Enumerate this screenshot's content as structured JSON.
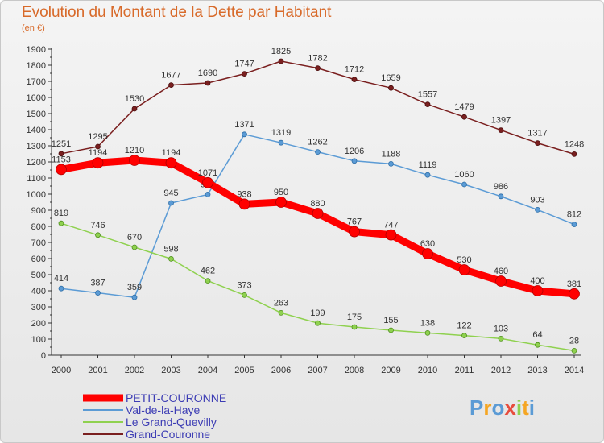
{
  "chart_data": {
    "type": "line",
    "title": "Evolution du Montant de la Dette par Habitant",
    "subtitle": "(en €)",
    "xlabel": "",
    "ylabel": "",
    "x": [
      "2000",
      "2001",
      "2002",
      "2003",
      "2004",
      "2005",
      "2006",
      "2007",
      "2008",
      "2009",
      "2010",
      "2011",
      "2012",
      "2013",
      "2014"
    ],
    "ylim": [
      0,
      1900
    ],
    "yticks": [
      0,
      100,
      200,
      300,
      400,
      500,
      600,
      700,
      800,
      900,
      1000,
      1100,
      1200,
      1300,
      1400,
      1500,
      1600,
      1700,
      1800,
      1900
    ],
    "grid": false,
    "legend_position": "bottom-left",
    "series": [
      {
        "name": "Grand-Couronne",
        "color": "#7a1f1f",
        "values": [
          1251,
          1295,
          1530,
          1677,
          1690,
          1747,
          1825,
          1782,
          1712,
          1659,
          1557,
          1479,
          1397,
          1317,
          1248
        ]
      },
      {
        "name": "Val-de-la-Haye",
        "color": "#5b9bd5",
        "values": [
          414,
          387,
          359,
          945,
          998,
          1371,
          1319,
          1262,
          1206,
          1188,
          1119,
          1060,
          986,
          903,
          812
        ]
      },
      {
        "name": "Le Grand-Quevilly",
        "color": "#8fd14f",
        "values": [
          819,
          746,
          670,
          598,
          462,
          373,
          263,
          199,
          175,
          155,
          138,
          122,
          103,
          64,
          28
        ]
      },
      {
        "name": "PETIT-COURONNE",
        "color": "#ff0000",
        "values": [
          1153,
          1194,
          1210,
          1194,
          1071,
          938,
          950,
          880,
          767,
          747,
          630,
          530,
          460,
          400,
          381
        ]
      }
    ],
    "legend_order": [
      "PETIT-COURONNE",
      "Val-de-la-Haye",
      "Le Grand-Quevilly",
      "Grand-Couronne"
    ]
  },
  "logo": {
    "text": "Proxiti",
    "colors": [
      "#5b9bd5",
      "#f5a623",
      "#5b9bd5",
      "#e74c3c",
      "#8fd14f",
      "#f5a623",
      "#5b9bd5"
    ]
  }
}
